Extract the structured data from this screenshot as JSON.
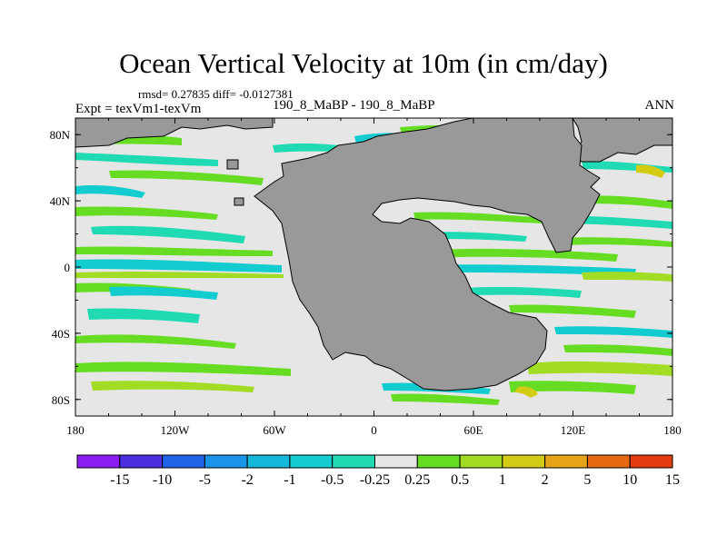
{
  "title": "Ocean Vertical Velocity at 10m (in cm/day)",
  "stats_line": "rmsd= 0.27835  diff= -0.0127381",
  "expt_label": "Expt = texVm1-texVm",
  "case_label": "190_8_MaBP - 190_8_MaBP",
  "season_label": "ANN",
  "map": {
    "lon_ticks": [
      "180",
      "120W",
      "60W",
      "0",
      "60E",
      "120E",
      "180"
    ],
    "lat_ticks": [
      "80N",
      "40N",
      "0",
      "40S",
      "80S"
    ],
    "ocean_color": "#e6e6e6",
    "land_color": "#999999"
  },
  "colorbar": {
    "labels": [
      "-15",
      "-10",
      "-5",
      "-2",
      "-1",
      "-0.5",
      "-0.25",
      "0.25",
      "0.5",
      "1",
      "2",
      "5",
      "10",
      "15"
    ],
    "colors": [
      "#8a1cf0",
      "#4a2ee0",
      "#1e62e6",
      "#1a94e6",
      "#14b8d8",
      "#12ccd0",
      "#20dab4",
      "#e6e6e6",
      "#66dd22",
      "#a2dc24",
      "#d4cc14",
      "#e6a418",
      "#e66a14",
      "#e23c10"
    ]
  }
}
